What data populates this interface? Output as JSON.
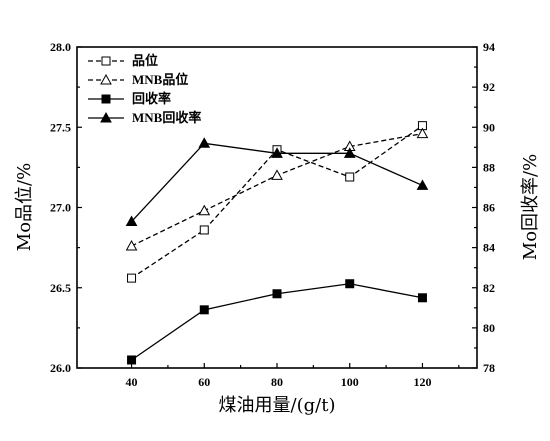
{
  "chart_data": {
    "type": "line",
    "x": [
      40,
      60,
      80,
      100,
      120
    ],
    "xlabel": "煤油用量/(g/t)",
    "ylabel_left": "Mo品位/%",
    "ylabel_right": "Mo回收率/%",
    "xlim": [
      25,
      135
    ],
    "ylim_left": [
      26.0,
      28.0
    ],
    "ylim_right": [
      78,
      94
    ],
    "x_ticks": [
      "40",
      "60",
      "80",
      "100",
      "120"
    ],
    "y_left_ticks": [
      "26.0",
      "26.5",
      "27.0",
      "27.5",
      "28.0"
    ],
    "y_right_ticks": [
      "78",
      "80",
      "82",
      "84",
      "86",
      "88",
      "90",
      "92",
      "94"
    ],
    "legend_position": "top-left",
    "grid": false,
    "series": [
      {
        "name": "品位",
        "axis": "left",
        "marker": "square-open",
        "line": "dashed",
        "values": [
          26.56,
          26.86,
          27.36,
          27.19,
          27.51
        ]
      },
      {
        "name": "MNB品位",
        "axis": "left",
        "marker": "triangle-open",
        "line": "dashed",
        "values": [
          26.76,
          26.98,
          27.2,
          27.38,
          27.46
        ]
      },
      {
        "name": "回收率",
        "axis": "right",
        "marker": "square-filled",
        "line": "solid",
        "values": [
          78.4,
          80.9,
          81.7,
          82.2,
          81.5
        ]
      },
      {
        "name": "MNB回收率",
        "axis": "right",
        "marker": "triangle-filled",
        "line": "solid",
        "values": [
          85.3,
          89.2,
          88.7,
          88.7,
          87.1
        ]
      }
    ]
  }
}
